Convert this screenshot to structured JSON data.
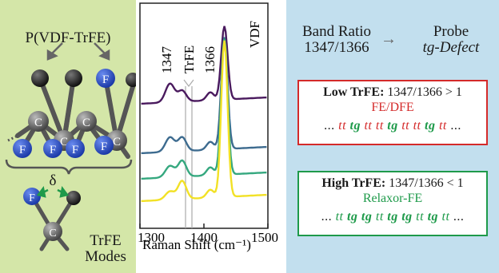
{
  "left": {
    "title": "P(VDF-TrFE)",
    "atoms": {
      "C": "C",
      "F": "F"
    },
    "delta": "δ",
    "modes_line1": "TrFE",
    "modes_line2": "Modes"
  },
  "spectrum": {
    "xlabel": "Raman Shift (cm⁻¹)",
    "ticks": [
      "1300",
      "1400",
      "1500"
    ],
    "label_1347": "1347",
    "label_trfe": "TrFE",
    "label_1366": "1366",
    "label_vdf": "VDF"
  },
  "chart_data": {
    "type": "line",
    "xlim": [
      1300,
      1500
    ],
    "x_ticks": [
      1300,
      1400,
      1500
    ],
    "xlabel": "Raman Shift (cm⁻¹)",
    "annotations": [
      "1347",
      "TrFE",
      "1366",
      "VDF"
    ],
    "vertical_lines": [
      1347,
      1366
    ],
    "series": [
      {
        "color": "#4a1a5e",
        "offset": 3
      },
      {
        "color": "#3d6b8f",
        "offset": 2
      },
      {
        "color": "#35a87f",
        "offset": 1
      },
      {
        "color": "#f2e126",
        "offset": 0
      }
    ]
  },
  "right": {
    "header_left_1": "Band Ratio",
    "header_left_2": "1347/1366",
    "arrow": "→",
    "header_right_1": "Probe",
    "header_right_2": "tg-Defect",
    "low": {
      "title": "Low TrFE:",
      "ratio": "1347/1366 > 1",
      "phase": "FE/DFE",
      "seq": [
        "...",
        "tt",
        "tg",
        "tt",
        "tt",
        "tg",
        "tt",
        "tt",
        "tg",
        "tt",
        "..."
      ]
    },
    "high": {
      "title": "High TrFE:",
      "ratio": "1347/1366 < 1",
      "phase": "Relaxor-FE",
      "seq": [
        "...",
        "tt",
        "tg",
        "tg",
        "tt",
        "tg",
        "tg",
        "tt",
        "tg",
        "tt",
        "..."
      ]
    }
  },
  "colors": {
    "left_bg": "#d4e6a8",
    "right_bg": "#c2dfee",
    "low_accent": "#d42a2a",
    "high_accent": "#1e9a4a",
    "fluorine": "#2f52c9"
  }
}
